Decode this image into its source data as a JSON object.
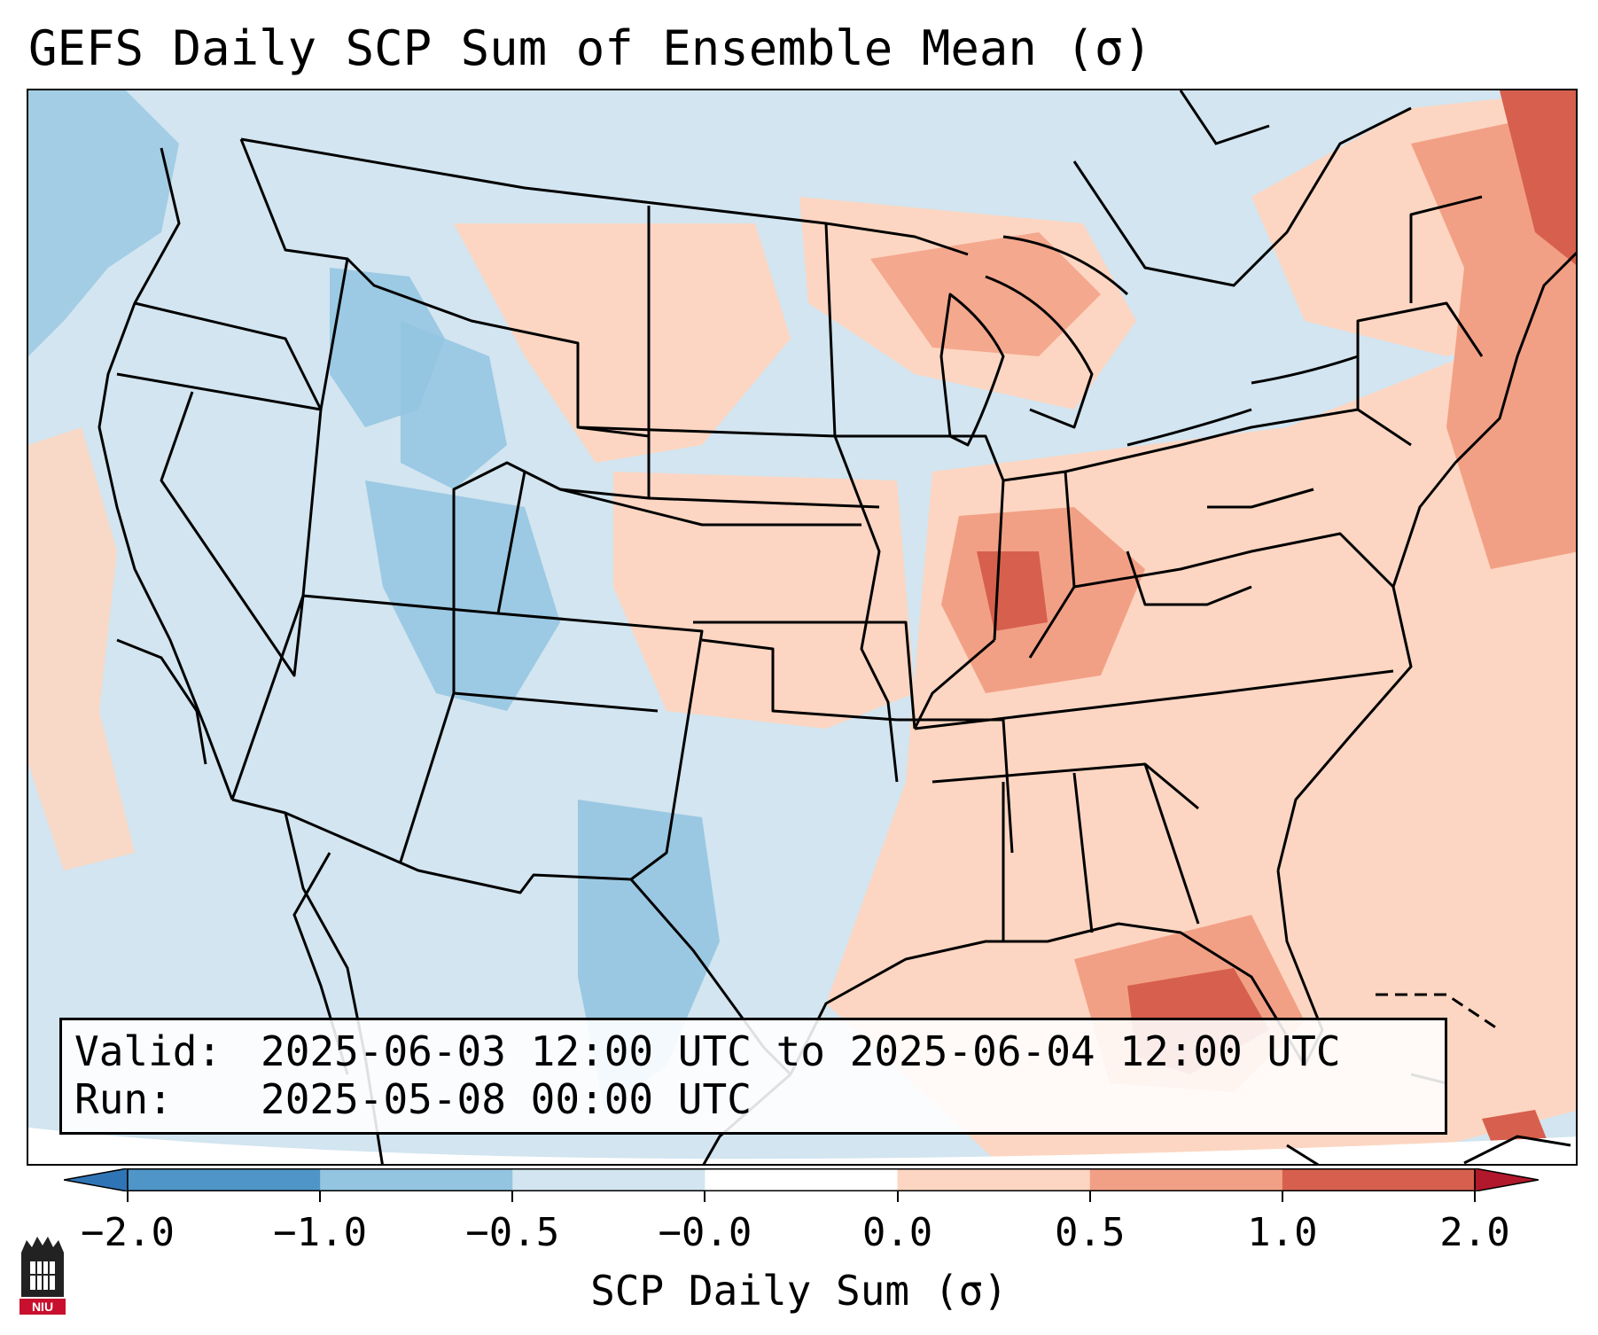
{
  "title": "GEFS Daily SCP Sum of Ensemble Mean (σ)",
  "info": {
    "valid_label": "Valid:",
    "valid_value": "2025-06-03 12:00 UTC to 2025-06-04 12:00 UTC",
    "run_label": "Run:",
    "run_value": "2025-05-08 00:00 UTC"
  },
  "colorbar": {
    "label": "SCP Daily Sum (σ)",
    "ticks": [
      "−2.0",
      "−1.0",
      "−0.5",
      "−0.0",
      "0.0",
      "0.5",
      "1.0",
      "2.0"
    ],
    "colors": [
      "#2f75b6",
      "#4f95c8",
      "#93c4e0",
      "#d2e5f0",
      "#ffffff",
      "#fcd6c2",
      "#f2a085",
      "#d6604d",
      "#b2182b"
    ]
  },
  "map": {
    "region": "Contiguous United States",
    "background_color": "#d2e5f0",
    "outline_color": "#000000"
  },
  "logo": {
    "text": "NIU",
    "color": "#c8102e"
  }
}
